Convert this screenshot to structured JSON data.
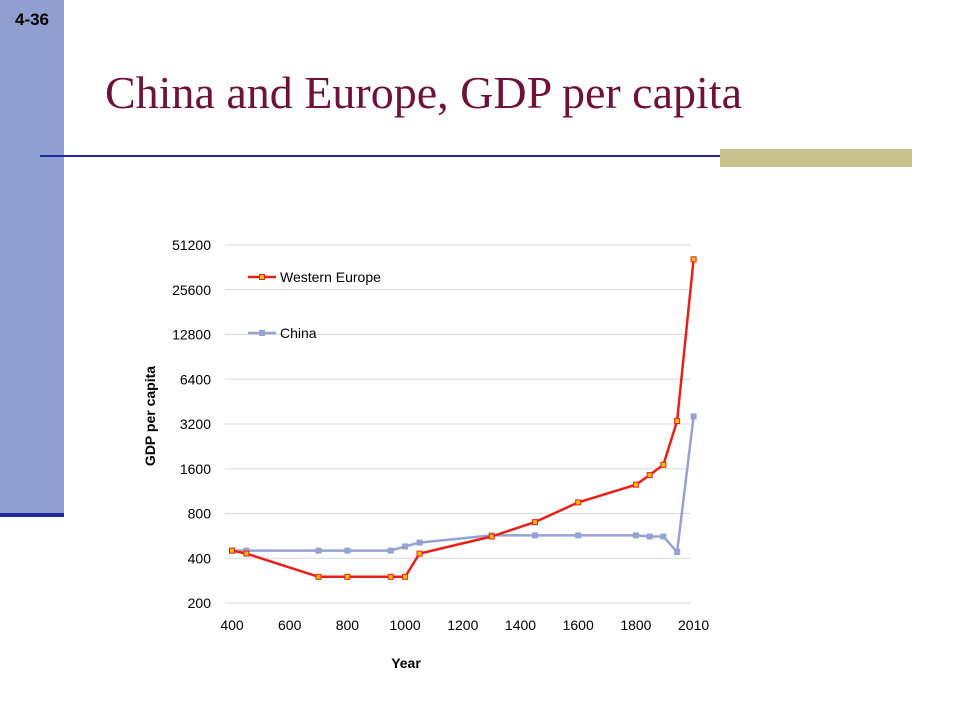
{
  "slide": {
    "number": "4-36",
    "title": "China and Europe, GDP per capita"
  },
  "colors": {
    "sidebar": "#8f9fd0",
    "title": "#6e1239",
    "rule": "#1e2a9c",
    "accent": "#c8c28e",
    "western_europe": "#e8201a",
    "western_europe_marker": "#f0c000",
    "china": "#94a3d2"
  },
  "chart_data": {
    "type": "line",
    "title": "",
    "xlabel": "Year",
    "ylabel": "GDP per capita",
    "yscale": "log2",
    "ylim": [
      200,
      51200
    ],
    "xlim": [
      400,
      2010
    ],
    "x_ticks": [
      "400",
      "600",
      "800",
      "1000",
      "1200",
      "1400",
      "1600",
      "1800",
      "2010"
    ],
    "y_ticks": [
      "200",
      "400",
      "800",
      "1600",
      "3200",
      "6400",
      "12800",
      "25600",
      "51200"
    ],
    "grid": "horizontal",
    "legend_position": "top-left",
    "series": [
      {
        "name": "Western Europe",
        "x": [
          400,
          450,
          700,
          800,
          950,
          1000,
          1050,
          1300,
          1450,
          1600,
          1800,
          1850,
          1900,
          1950,
          2010
        ],
        "y": [
          450,
          430,
          300,
          300,
          300,
          300,
          430,
          560,
          700,
          950,
          1250,
          1450,
          1700,
          3350,
          41000
        ]
      },
      {
        "name": "China",
        "x": [
          400,
          450,
          700,
          800,
          950,
          1000,
          1050,
          1300,
          1450,
          1600,
          1800,
          1850,
          1900,
          1950,
          2010
        ],
        "y": [
          450,
          450,
          450,
          450,
          450,
          480,
          510,
          570,
          570,
          570,
          570,
          560,
          560,
          440,
          3600
        ]
      }
    ]
  }
}
